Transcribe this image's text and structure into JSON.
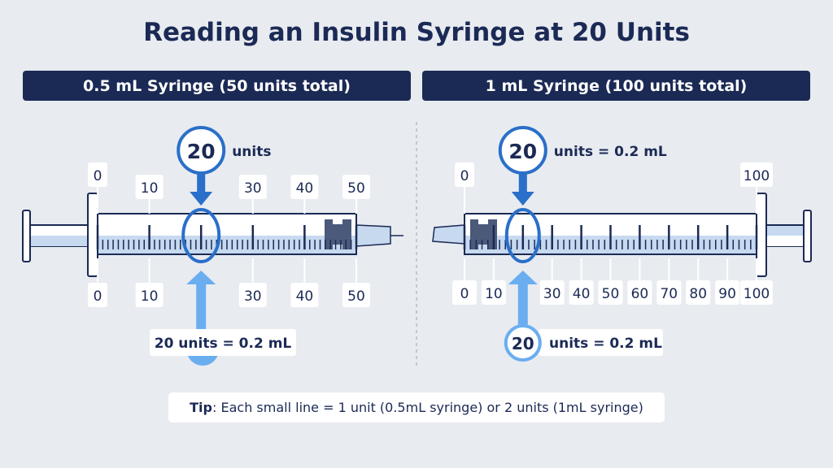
{
  "title": "Reading an Insulin Syringe at 20 Units",
  "colors": {
    "navy": "#1b2a55",
    "blue": "#2a6fc9",
    "light_blue": "#6aaef0",
    "fluid": "#c6d9ef"
  },
  "left": {
    "header": "0.5 mL Syringe (50 units total)",
    "top_labels": [
      "0",
      "10",
      "30",
      "40",
      "50"
    ],
    "bottom_labels": [
      "0",
      "10",
      "30",
      "40",
      "50"
    ],
    "top_callout_number": "20",
    "top_callout_text": "units",
    "bottom_callout_text": "20 units = 0.2 mL",
    "total_units": 50,
    "small_tick_units": 1,
    "reading_units": 20
  },
  "right": {
    "header": "1 mL Syringe (100 units total)",
    "top_labels": [
      "0",
      "100"
    ],
    "bottom_labels": [
      "0",
      "10",
      "30",
      "40",
      "50",
      "60",
      "70",
      "80",
      "90",
      "100"
    ],
    "top_callout_number": "20",
    "top_callout_text": "units = 0.2 mL",
    "bottom_callout_number": "20",
    "bottom_callout_text": "units = 0.2 mL",
    "total_units": 100,
    "small_tick_units": 2,
    "reading_units": 20
  },
  "tip": {
    "label": "Tip",
    "text": ": Each small line = 1 unit (0.5mL syringe) or 2 units (1mL syringe)"
  }
}
